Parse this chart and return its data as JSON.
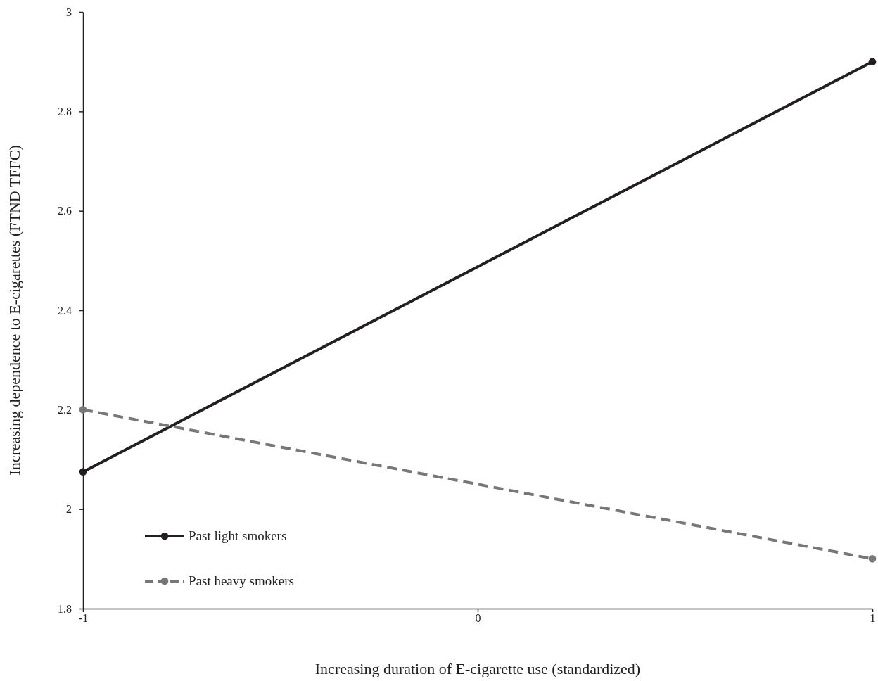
{
  "chart_data": {
    "type": "line",
    "xlabel": "Increasing duration of E-cigarette use (standardized)",
    "ylabel": "Increasing dependence to E-cigarettes (FTND TFFC)",
    "x": [
      -1,
      1
    ],
    "xlim": [
      -1,
      1
    ],
    "xticks": [
      -1,
      0,
      1
    ],
    "ylim": [
      1.8,
      3
    ],
    "yticks": [
      1.8,
      2,
      2.2,
      2.4,
      2.6,
      2.8,
      3
    ],
    "series": [
      {
        "name": "Past light smokers",
        "color": "#231f20",
        "values": [
          2.075,
          2.9
        ],
        "line_style": "solid"
      },
      {
        "name": "Past heavy smokers",
        "color": "#777777",
        "values": [
          2.2,
          1.9
        ],
        "line_style": "dashed"
      }
    ],
    "marker": "circle",
    "grid": false,
    "legend": "bottom left"
  }
}
